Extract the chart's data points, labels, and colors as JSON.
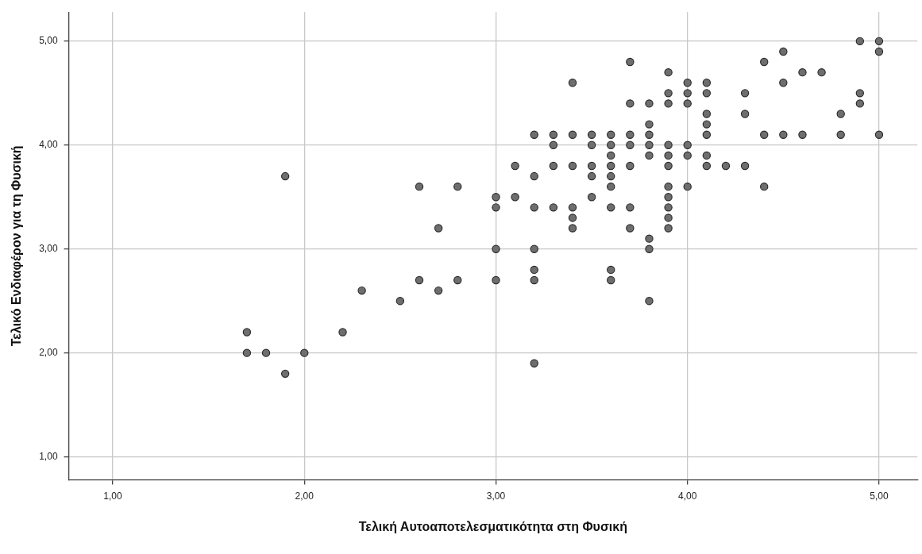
{
  "chart_data": {
    "type": "scatter",
    "xlabel": "Τελική Αυτοαποτελεσματικότητα στη Φυσική",
    "ylabel": "Τελικό Ενδιαφέρον για τη Φυσική",
    "xlim": [
      0.77,
      5.2
    ],
    "ylim": [
      0.78,
      5.28
    ],
    "xticks": [
      {
        "value": 1,
        "label": "1,00"
      },
      {
        "value": 2,
        "label": "2,00"
      },
      {
        "value": 3,
        "label": "3,00"
      },
      {
        "value": 4,
        "label": "4,00"
      },
      {
        "value": 5,
        "label": "5,00"
      }
    ],
    "yticks": [
      {
        "value": 1,
        "label": "1,00"
      },
      {
        "value": 2,
        "label": "2,00"
      },
      {
        "value": 3,
        "label": "3,00"
      },
      {
        "value": 4,
        "label": "4,00"
      },
      {
        "value": 5,
        "label": "5,00"
      }
    ],
    "grid": true,
    "legend": false,
    "marker": "circle",
    "series": [
      {
        "color": "#6e6e6e",
        "x": [
          1.7,
          1.7,
          1.8,
          1.9,
          1.9,
          2.0,
          2.2,
          2.3,
          2.5,
          2.6,
          2.6,
          2.7,
          2.7,
          2.8,
          2.8,
          3.0,
          3.0,
          3.0,
          3.0,
          3.1,
          3.1,
          3.2,
          3.2,
          3.2,
          3.2,
          3.2,
          3.2,
          3.2,
          3.3,
          3.3,
          3.3,
          3.3,
          3.4,
          3.4,
          3.4,
          3.4,
          3.4,
          3.4,
          3.5,
          3.5,
          3.5,
          3.5,
          3.5,
          3.6,
          3.6,
          3.6,
          3.6,
          3.6,
          3.6,
          3.6,
          3.6,
          3.6,
          3.7,
          3.7,
          3.7,
          3.7,
          3.7,
          3.7,
          3.7,
          3.8,
          3.8,
          3.8,
          3.8,
          3.8,
          3.8,
          3.8,
          3.8,
          3.9,
          3.9,
          3.9,
          3.9,
          3.9,
          3.9,
          3.9,
          3.9,
          3.9,
          3.9,
          3.9,
          4.0,
          4.0,
          4.0,
          4.0,
          4.0,
          4.0,
          4.1,
          4.1,
          4.1,
          4.1,
          4.1,
          4.1,
          4.1,
          4.2,
          4.3,
          4.3,
          4.3,
          4.4,
          4.4,
          4.4,
          4.5,
          4.5,
          4.5,
          4.6,
          4.6,
          4.7,
          4.8,
          4.8,
          4.9,
          4.9,
          4.9,
          5.0,
          5.0,
          5.0
        ],
        "values": [
          2.2,
          2.0,
          2.0,
          3.7,
          1.8,
          2.0,
          2.2,
          2.6,
          2.5,
          3.6,
          2.7,
          3.2,
          2.6,
          3.6,
          2.7,
          3.5,
          3.4,
          3.0,
          2.7,
          3.8,
          3.5,
          4.1,
          3.7,
          3.4,
          3.0,
          2.8,
          2.7,
          1.9,
          4.1,
          4.0,
          3.8,
          3.4,
          4.6,
          4.1,
          3.8,
          3.4,
          3.3,
          3.2,
          4.1,
          4.0,
          3.8,
          3.7,
          3.5,
          4.1,
          4.0,
          3.9,
          3.8,
          3.7,
          3.6,
          3.4,
          2.8,
          2.7,
          4.8,
          4.4,
          4.1,
          4.0,
          3.8,
          3.4,
          3.2,
          4.4,
          4.2,
          4.1,
          4.0,
          3.9,
          3.1,
          3.0,
          2.5,
          4.7,
          4.5,
          4.4,
          4.0,
          3.9,
          3.8,
          3.6,
          3.5,
          3.4,
          3.3,
          3.2,
          4.6,
          4.5,
          4.4,
          4.0,
          3.9,
          3.6,
          4.6,
          4.5,
          4.3,
          4.2,
          4.1,
          3.9,
          3.8,
          3.8,
          4.5,
          4.3,
          3.8,
          4.8,
          4.1,
          3.6,
          4.9,
          4.6,
          4.1,
          4.7,
          4.1,
          4.7,
          4.3,
          4.1,
          5.0,
          4.5,
          4.4,
          5.0,
          4.9,
          4.1
        ]
      }
    ]
  }
}
